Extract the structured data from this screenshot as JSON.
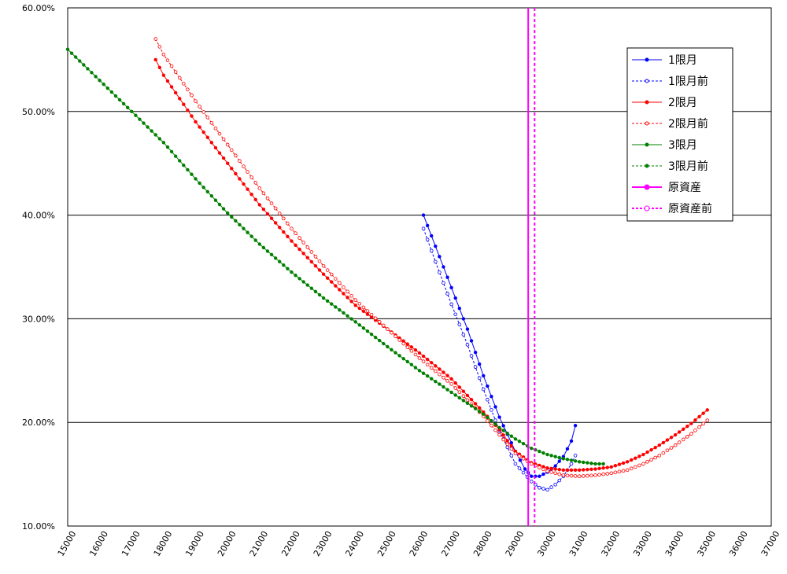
{
  "chart_data": {
    "type": "line",
    "title": "",
    "xlabel": "",
    "ylabel": "",
    "xlim": [
      15000,
      37000
    ],
    "ylim": [
      0.1,
      0.6
    ],
    "x_ticks": [
      15000,
      16000,
      17000,
      18000,
      19000,
      20000,
      21000,
      22000,
      23000,
      24000,
      25000,
      26000,
      27000,
      28000,
      29000,
      30000,
      31000,
      32000,
      33000,
      34000,
      35000,
      36000,
      37000
    ],
    "x_tick_labels": [
      "15000",
      "16000",
      "17000",
      "18000",
      "19000",
      "20000",
      "21000",
      "22000",
      "23000",
      "24000",
      "25000",
      "26000",
      "27000",
      "28000",
      "29000",
      "30000",
      "31000",
      "32000",
      "33000",
      "34000",
      "35000",
      "36000",
      "37000"
    ],
    "y_ticks": [
      0.1,
      0.2,
      0.3,
      0.4,
      0.5,
      0.6
    ],
    "y_tick_labels": [
      "10.00%",
      "20.00%",
      "30.00%",
      "40.00%",
      "50.00%",
      "60.00%"
    ],
    "grid": "horizontal",
    "legend_position": "top-right",
    "series": [
      {
        "name": "1限月",
        "color": "#0000ff",
        "style": "solid",
        "marker": "filled",
        "x": [
          26125,
          26500,
          27000,
          27500,
          28000,
          28500,
          29000,
          29300,
          29500,
          29750,
          30000,
          30250,
          30500,
          30750,
          30875
        ],
        "y": [
          0.4,
          0.37,
          0.33,
          0.29,
          0.245,
          0.205,
          0.172,
          0.155,
          0.148,
          0.148,
          0.152,
          0.158,
          0.167,
          0.182,
          0.197
        ]
      },
      {
        "name": "1限月前",
        "color": "#0000ff",
        "style": "dashed",
        "marker": "open",
        "x": [
          26125,
          26500,
          27000,
          27500,
          28000,
          28500,
          29000,
          29500,
          29750,
          30000,
          30250,
          30500,
          30750,
          30875
        ],
        "y": [
          0.387,
          0.355,
          0.314,
          0.275,
          0.232,
          0.192,
          0.16,
          0.143,
          0.137,
          0.135,
          0.14,
          0.148,
          0.16,
          0.168
        ]
      },
      {
        "name": "2限月",
        "color": "#ff0000",
        "style": "solid",
        "marker": "filled",
        "x": [
          17750,
          18000,
          19000,
          20000,
          21000,
          22000,
          23000,
          24000,
          25000,
          26000,
          27000,
          28000,
          28500,
          29000,
          29500,
          30000,
          30500,
          31000,
          31500,
          32000,
          32500,
          33000,
          33500,
          34000,
          34500,
          35000
        ],
        "y": [
          0.55,
          0.535,
          0.49,
          0.45,
          0.41,
          0.375,
          0.343,
          0.313,
          0.29,
          0.267,
          0.242,
          0.21,
          0.193,
          0.172,
          0.161,
          0.156,
          0.154,
          0.154,
          0.155,
          0.157,
          0.162,
          0.169,
          0.178,
          0.188,
          0.199,
          0.212
        ]
      },
      {
        "name": "2限月前",
        "color": "#ff0000",
        "style": "dashed",
        "marker": "open",
        "x": [
          17750,
          18000,
          19000,
          20000,
          21000,
          22000,
          23000,
          24000,
          25000,
          26000,
          27000,
          28000,
          28500,
          29000,
          29500,
          30000,
          30500,
          31000,
          31500,
          32000,
          32500,
          33000,
          33500,
          34000,
          34500,
          35000
        ],
        "y": [
          0.57,
          0.555,
          0.51,
          0.468,
          0.426,
          0.387,
          0.351,
          0.318,
          0.29,
          0.262,
          0.237,
          0.206,
          0.188,
          0.17,
          0.16,
          0.153,
          0.149,
          0.148,
          0.149,
          0.151,
          0.154,
          0.16,
          0.168,
          0.178,
          0.189,
          0.202
        ]
      },
      {
        "name": "3限月",
        "color": "#008000",
        "style": "solid",
        "marker": "filled",
        "x": [
          15000,
          16000,
          17000,
          18000,
          19000,
          20000,
          21000,
          22000,
          23000,
          24000,
          25000,
          26000,
          27000,
          28000,
          28500,
          29000,
          29500,
          30000,
          30500,
          31000,
          31500,
          31750
        ],
        "y": [
          0.56,
          0.53,
          0.5,
          0.47,
          0.435,
          0.402,
          0.372,
          0.345,
          0.32,
          0.297,
          0.273,
          0.25,
          0.229,
          0.208,
          0.195,
          0.184,
          0.175,
          0.169,
          0.165,
          0.162,
          0.16,
          0.16
        ]
      },
      {
        "name": "3限月前",
        "color": "#008000",
        "style": "dashed",
        "marker": "filled",
        "x": [],
        "y": []
      },
      {
        "name": "原資産",
        "color": "#ff00ff",
        "style": "solid",
        "marker": "filled",
        "vertical_x": 29400
      },
      {
        "name": "原資産前",
        "color": "#ff00ff",
        "style": "dashed",
        "marker": "open",
        "vertical_x": 29600
      }
    ]
  }
}
